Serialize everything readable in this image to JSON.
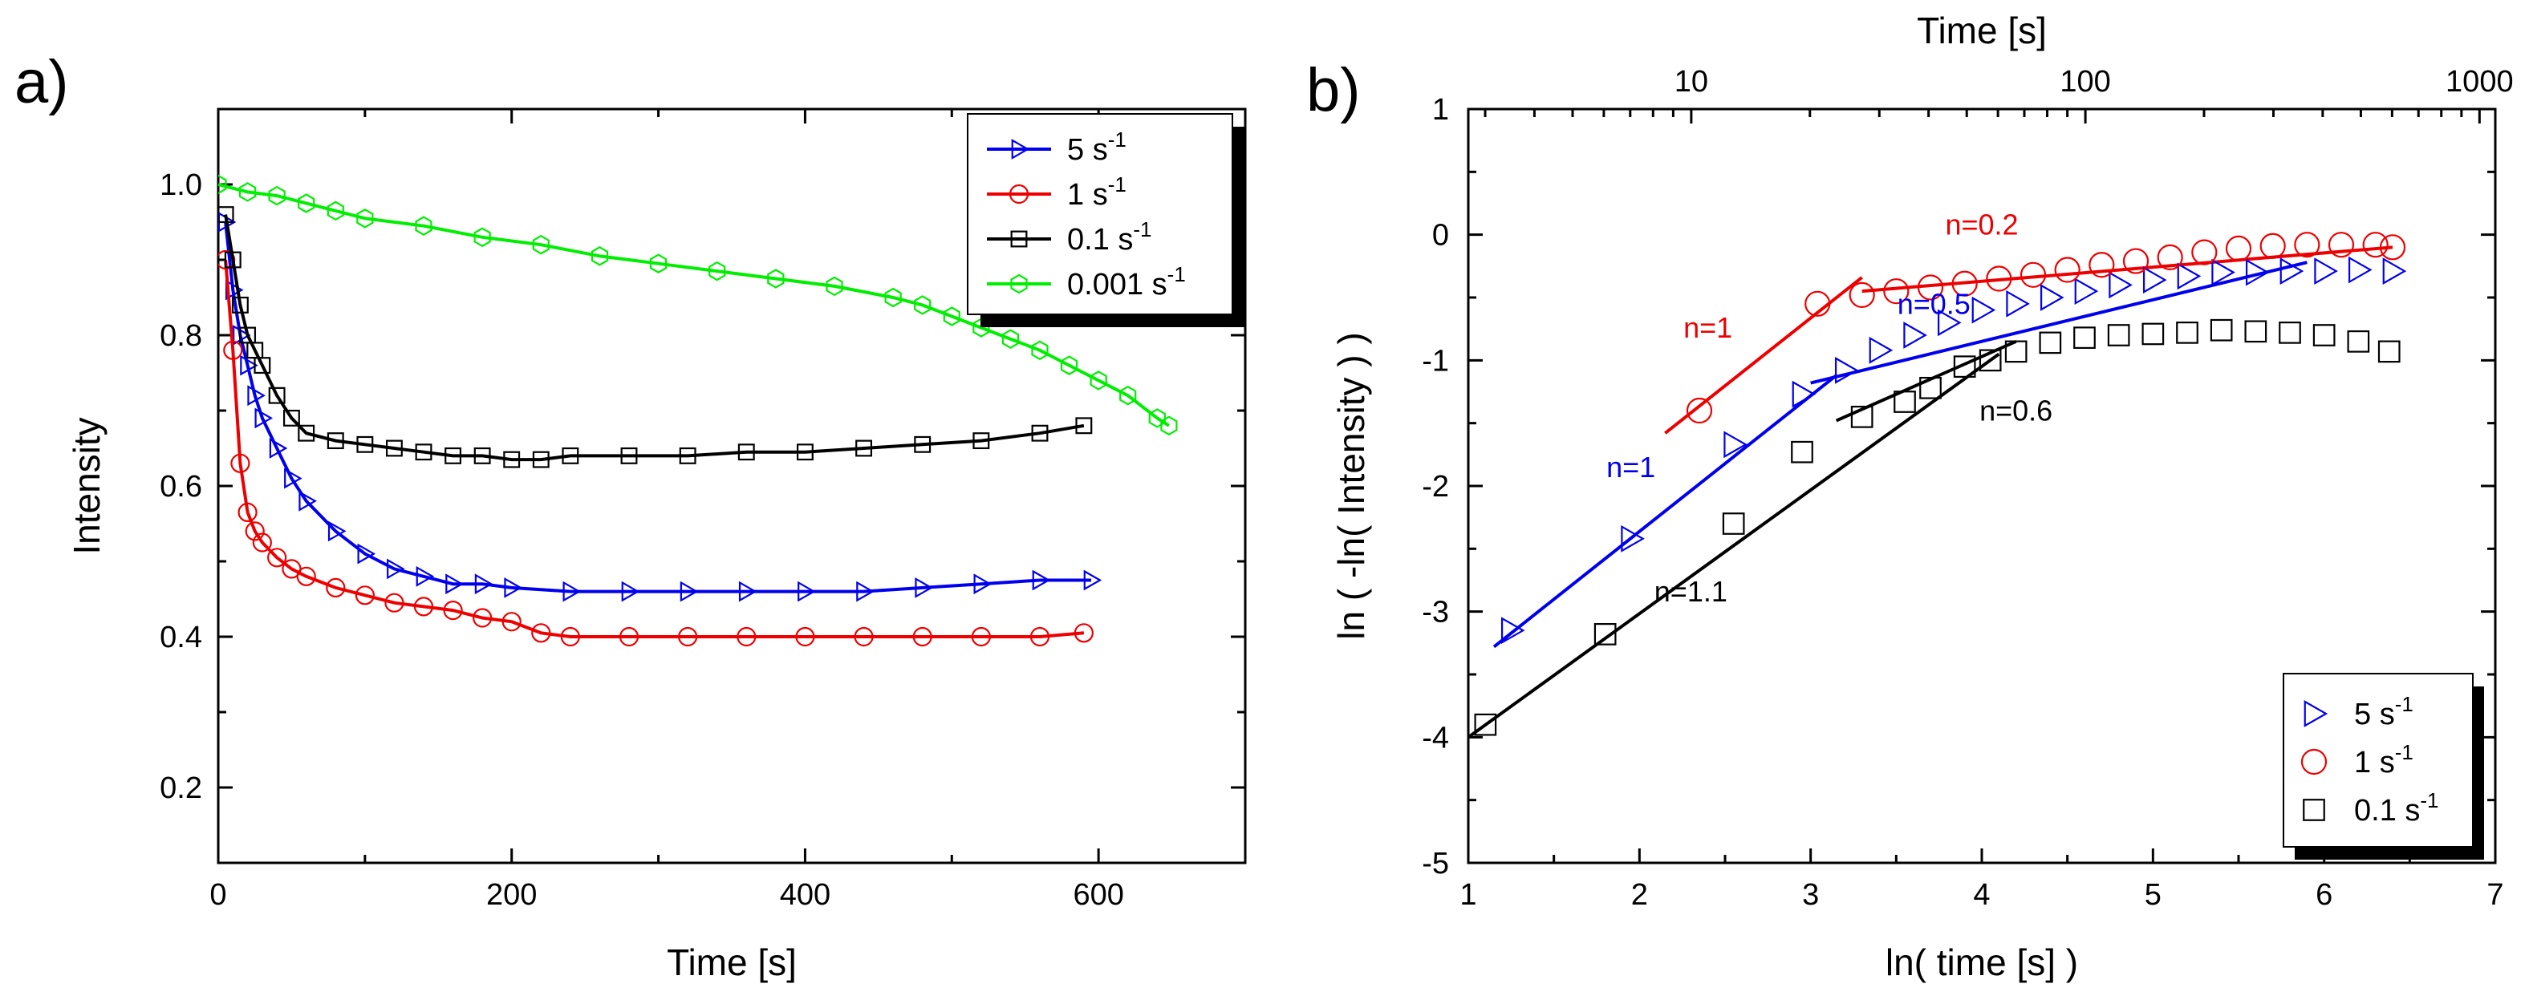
{
  "chart_data": [
    {
      "panel_label": "a)",
      "type": "line",
      "xlabel": "Time [s]",
      "ylabel": "Intensity",
      "xlim": [
        0,
        700
      ],
      "ylim": [
        0.1,
        1.1
      ],
      "xticks": [
        {
          "value": 0,
          "label": "0"
        },
        {
          "value": 200,
          "label": "200"
        },
        {
          "value": 400,
          "label": "400"
        },
        {
          "value": 600,
          "label": "600"
        }
      ],
      "yticks": [
        {
          "value": 0.2,
          "label": "0.2"
        },
        {
          "value": 0.4,
          "label": "0.4"
        },
        {
          "value": 0.6,
          "label": "0.6"
        },
        {
          "value": 0.8,
          "label": "0.8"
        },
        {
          "value": 1.0,
          "label": "1.0"
        }
      ],
      "grid": false,
      "legend_position": "top-right",
      "series": [
        {
          "name": "5 s",
          "unit_sup": "-1",
          "color": "#0000ee",
          "marker": "triangle-right",
          "x": [
            5,
            10,
            15,
            20,
            25,
            30,
            40,
            50,
            60,
            80,
            100,
            120,
            140,
            160,
            180,
            200,
            240,
            280,
            320,
            360,
            400,
            440,
            480,
            520,
            560,
            595
          ],
          "y": [
            0.95,
            0.86,
            0.8,
            0.76,
            0.72,
            0.69,
            0.65,
            0.61,
            0.58,
            0.54,
            0.51,
            0.49,
            0.48,
            0.47,
            0.47,
            0.465,
            0.46,
            0.46,
            0.46,
            0.46,
            0.46,
            0.46,
            0.465,
            0.47,
            0.475,
            0.475
          ]
        },
        {
          "name": "1 s",
          "unit_sup": "-1",
          "color": "#ee0000",
          "marker": "circle",
          "x": [
            5,
            10,
            15,
            20,
            25,
            30,
            40,
            50,
            60,
            80,
            100,
            120,
            140,
            160,
            180,
            200,
            220,
            240,
            280,
            320,
            360,
            400,
            440,
            480,
            520,
            560,
            590
          ],
          "y": [
            0.9,
            0.78,
            0.63,
            0.565,
            0.54,
            0.525,
            0.505,
            0.49,
            0.48,
            0.465,
            0.455,
            0.445,
            0.44,
            0.435,
            0.425,
            0.42,
            0.405,
            0.4,
            0.4,
            0.4,
            0.4,
            0.4,
            0.4,
            0.4,
            0.4,
            0.4,
            0.405
          ]
        },
        {
          "name": "0.1 s",
          "unit_sup": "-1",
          "color": "#000000",
          "marker": "square",
          "x": [
            5,
            10,
            15,
            20,
            25,
            30,
            40,
            50,
            60,
            80,
            100,
            120,
            140,
            160,
            180,
            200,
            220,
            240,
            280,
            320,
            360,
            400,
            440,
            480,
            520,
            560,
            590
          ],
          "y": [
            0.96,
            0.9,
            0.84,
            0.8,
            0.78,
            0.76,
            0.72,
            0.69,
            0.67,
            0.66,
            0.655,
            0.65,
            0.645,
            0.64,
            0.64,
            0.635,
            0.635,
            0.64,
            0.64,
            0.64,
            0.645,
            0.645,
            0.65,
            0.655,
            0.66,
            0.67,
            0.68
          ]
        },
        {
          "name": "0.001 s",
          "unit_sup": "-1",
          "color": "#00ee00",
          "marker": "hexagon",
          "x": [
            0,
            20,
            40,
            60,
            80,
            100,
            140,
            180,
            220,
            260,
            300,
            340,
            380,
            420,
            460,
            480,
            500,
            520,
            540,
            560,
            580,
            600,
            620,
            640,
            648
          ],
          "y": [
            1.0,
            0.99,
            0.985,
            0.975,
            0.965,
            0.955,
            0.945,
            0.93,
            0.92,
            0.905,
            0.895,
            0.885,
            0.875,
            0.865,
            0.85,
            0.84,
            0.825,
            0.81,
            0.795,
            0.78,
            0.76,
            0.74,
            0.72,
            0.69,
            0.68
          ]
        }
      ]
    },
    {
      "panel_label": "b)",
      "type": "scatter",
      "xlabel": "ln( time [s] )",
      "ylabel": "ln ( -ln( Intensity ) )",
      "x2label": "Time [s]",
      "xlim": [
        1,
        7
      ],
      "ylim": [
        -5,
        1
      ],
      "xticks": [
        {
          "value": 1,
          "label": "1"
        },
        {
          "value": 2,
          "label": "2"
        },
        {
          "value": 3,
          "label": "3"
        },
        {
          "value": 4,
          "label": "4"
        },
        {
          "value": 5,
          "label": "5"
        },
        {
          "value": 6,
          "label": "6"
        },
        {
          "value": 7,
          "label": "7"
        }
      ],
      "yticks": [
        {
          "value": -5,
          "label": "-5"
        },
        {
          "value": -4,
          "label": "-4"
        },
        {
          "value": -3,
          "label": "-3"
        },
        {
          "value": -2,
          "label": "-2"
        },
        {
          "value": -1,
          "label": "-1"
        },
        {
          "value": 0,
          "label": "0"
        },
        {
          "value": 1,
          "label": "1"
        }
      ],
      "x2ticks": [
        {
          "value": 10,
          "label": "10"
        },
        {
          "value": 100,
          "label": "100"
        },
        {
          "value": 1000,
          "label": "1000"
        }
      ],
      "x2_scale": "log",
      "grid": false,
      "legend_position": "bottom-right",
      "series": [
        {
          "name": "5 s",
          "unit_sup": "-1",
          "color": "#0000ee",
          "marker": "triangle-right",
          "x": [
            1.25,
            1.95,
            2.55,
            2.95,
            3.2,
            3.4,
            3.6,
            3.8,
            4.0,
            4.2,
            4.4,
            4.6,
            4.8,
            5.0,
            5.2,
            5.4,
            5.6,
            5.8,
            6.0,
            6.2,
            6.4
          ],
          "y": [
            -3.15,
            -2.42,
            -1.67,
            -1.27,
            -1.08,
            -0.92,
            -0.8,
            -0.7,
            -0.6,
            -0.55,
            -0.5,
            -0.45,
            -0.4,
            -0.36,
            -0.33,
            -0.3,
            -0.3,
            -0.29,
            -0.29,
            -0.28,
            -0.29
          ]
        },
        {
          "name": "1 s",
          "unit_sup": "-1",
          "color": "#ee0000",
          "marker": "circle",
          "x": [
            2.35,
            3.04,
            3.3,
            3.5,
            3.7,
            3.9,
            4.1,
            4.3,
            4.5,
            4.7,
            4.9,
            5.1,
            5.3,
            5.5,
            5.7,
            5.9,
            6.1,
            6.3,
            6.4
          ],
          "y": [
            -1.4,
            -0.55,
            -0.48,
            -0.45,
            -0.42,
            -0.39,
            -0.35,
            -0.32,
            -0.28,
            -0.24,
            -0.21,
            -0.18,
            -0.14,
            -0.11,
            -0.09,
            -0.08,
            -0.08,
            -0.08,
            -0.1
          ]
        },
        {
          "name": "0.1 s",
          "unit_sup": "-1",
          "color": "#000000",
          "marker": "square",
          "x": [
            1.1,
            1.8,
            2.55,
            2.95,
            3.3,
            3.55,
            3.7,
            3.9,
            4.05,
            4.2,
            4.4,
            4.6,
            4.8,
            5.0,
            5.2,
            5.4,
            5.6,
            5.8,
            6.0,
            6.2,
            6.38
          ],
          "y": [
            -3.9,
            -3.18,
            -2.3,
            -1.73,
            -1.45,
            -1.33,
            -1.22,
            -1.05,
            -1.0,
            -0.93,
            -0.86,
            -0.82,
            -0.8,
            -0.79,
            -0.78,
            -0.76,
            -0.77,
            -0.78,
            -0.8,
            -0.85,
            -0.93
          ]
        }
      ],
      "fit_lines": [
        {
          "color": "#ee0000",
          "x": [
            2.15,
            3.3
          ],
          "y": [
            -1.58,
            -0.34
          ]
        },
        {
          "color": "#ee0000",
          "x": [
            3.3,
            6.4
          ],
          "y": [
            -0.45,
            -0.1
          ]
        },
        {
          "color": "#0000ee",
          "x": [
            1.15,
            3.15
          ],
          "y": [
            -3.28,
            -1.12
          ]
        },
        {
          "color": "#0000ee",
          "x": [
            3.0,
            5.9
          ],
          "y": [
            -1.18,
            -0.22
          ]
        },
        {
          "color": "#000000",
          "x": [
            1.0,
            4.1
          ],
          "y": [
            -4.0,
            -0.95
          ]
        },
        {
          "color": "#000000",
          "x": [
            3.15,
            4.2
          ],
          "y": [
            -1.48,
            -0.85
          ]
        }
      ],
      "annotations": [
        {
          "text": "n=0.2",
          "color": "#ee0000",
          "x": 4.0,
          "y": 0.0
        },
        {
          "text": "n=1",
          "color": "#ee0000",
          "x": 2.4,
          "y": -0.82
        },
        {
          "text": "n=0.5",
          "color": "#0000ee",
          "x": 3.72,
          "y": -0.63
        },
        {
          "text": "n=1",
          "color": "#0000ee",
          "x": 1.95,
          "y": -1.93
        },
        {
          "text": "n=0.6",
          "color": "#000000",
          "x": 4.2,
          "y": -1.48
        },
        {
          "text": "n=1.1",
          "color": "#000000",
          "x": 2.3,
          "y": -2.92
        }
      ]
    }
  ]
}
